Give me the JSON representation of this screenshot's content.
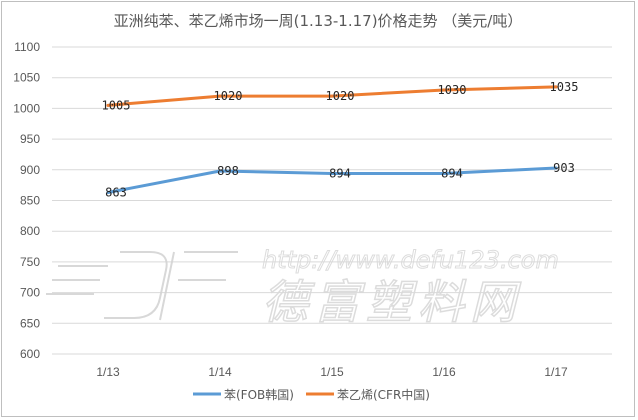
{
  "chart_data": {
    "type": "line",
    "title": "亚洲纯苯、苯乙烯市场一周(1.13-1.17)价格走势 （美元/吨）",
    "categories": [
      "1/13",
      "1/14",
      "1/15",
      "1/16",
      "1/17"
    ],
    "ylim": [
      600,
      1100
    ],
    "yticks": [
      600,
      650,
      700,
      750,
      800,
      850,
      900,
      950,
      1000,
      1050,
      1100
    ],
    "grid": true,
    "legend_position": "bottom",
    "series": [
      {
        "name": "苯(FOB韩国)",
        "color": "#5b9bd5",
        "values": [
          863,
          898,
          894,
          894,
          903
        ]
      },
      {
        "name": "苯乙烯(CFR中国)",
        "color": "#ed7d31",
        "values": [
          1005,
          1020,
          1020,
          1030,
          1035
        ]
      }
    ]
  },
  "watermark": {
    "url_text": "http://www.defu123.com",
    "brand_text": "德富塑料网"
  }
}
